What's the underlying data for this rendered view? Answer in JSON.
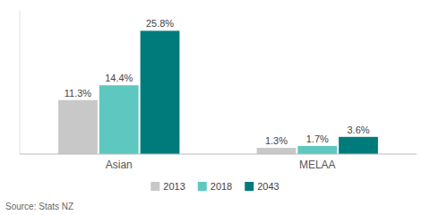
{
  "chart_data": {
    "type": "bar",
    "categories": [
      "Asian",
      "MELAA"
    ],
    "series": [
      {
        "name": "2013",
        "color": "#c8c8c8",
        "values": [
          11.3,
          1.3
        ],
        "value_labels": [
          "11.3%",
          "1.3%"
        ]
      },
      {
        "name": "2018",
        "color": "#5ec8c0",
        "values": [
          14.4,
          1.7
        ],
        "value_labels": [
          "14.4%",
          "1.7%"
        ]
      },
      {
        "name": "2043",
        "color": "#007b7b",
        "values": [
          25.8,
          3.6
        ],
        "value_labels": [
          "25.8%",
          "3.6%"
        ]
      }
    ],
    "ylim": [
      0,
      30
    ],
    "data_labels": true,
    "tick_labels": "x",
    "legend": "bottom",
    "annotations": [
      "Source: Stats NZ"
    ]
  }
}
